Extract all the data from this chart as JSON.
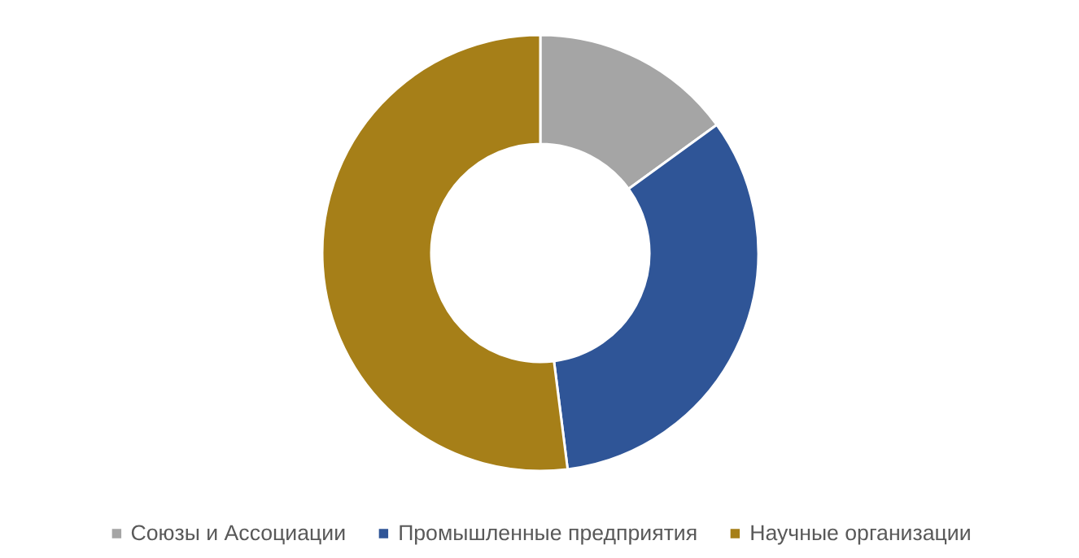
{
  "chart_data": {
    "type": "donut",
    "categories": [
      "Союзы и Ассоциации",
      "Промышленные предприятия",
      "Научные организации"
    ],
    "values": [
      15,
      33,
      52
    ],
    "colors": [
      "#a5a5a5",
      "#2f5597",
      "#a67f18"
    ],
    "legend": "bottom"
  }
}
